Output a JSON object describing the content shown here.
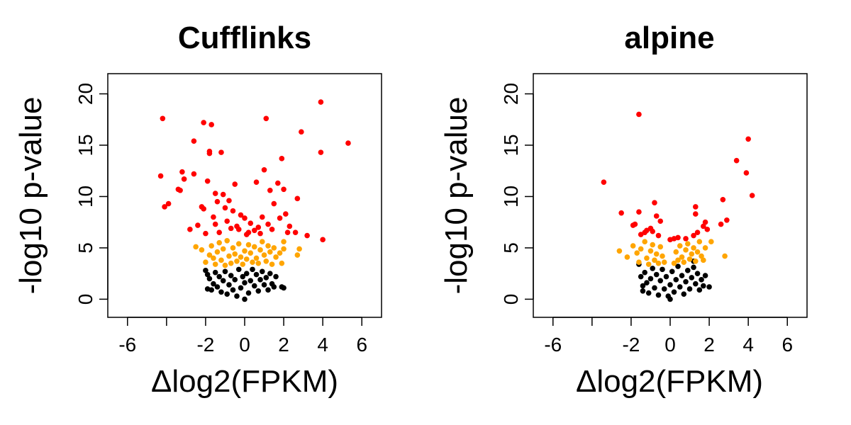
{
  "colors": {
    "not_significant": "#000000",
    "moderate": "#FFA500",
    "significant": "#FF0000"
  },
  "chart_data": [
    {
      "type": "scatter",
      "title": "Cufflinks",
      "xlabel": "Δlog2(FPKM)",
      "ylabel": "-log10 p-value",
      "xlim": [
        -6.5,
        6.5
      ],
      "ylim": [
        -0.8,
        21
      ],
      "xticks": [
        -6,
        -4,
        -2,
        0,
        2,
        4,
        6
      ],
      "xtick_labels": [
        "-6",
        "",
        "-2",
        "0",
        "2",
        "4",
        "6"
      ],
      "yticks": [
        0,
        5,
        10,
        15,
        20
      ],
      "ytick_labels": [
        "0",
        "5",
        "10",
        "15",
        "20"
      ],
      "grid": false,
      "series": [
        {
          "color": "#FF0000",
          "points": [
            [
              -4.3,
              12.0
            ],
            [
              -4.2,
              17.6
            ],
            [
              -4.1,
              9.0
            ],
            [
              -3.9,
              9.3
            ],
            [
              -3.4,
              10.7
            ],
            [
              -3.3,
              10.6
            ],
            [
              -3.2,
              12.4
            ],
            [
              -3.1,
              11.7
            ],
            [
              -2.8,
              6.8
            ],
            [
              -2.6,
              12.2
            ],
            [
              -2.6,
              15.4
            ],
            [
              -2.4,
              7.2
            ],
            [
              -2.2,
              9.0
            ],
            [
              -2.1,
              8.8
            ],
            [
              -2.1,
              17.2
            ],
            [
              -2.0,
              6.4
            ],
            [
              -1.9,
              11.5
            ],
            [
              -1.8,
              14.2
            ],
            [
              -1.8,
              14.4
            ],
            [
              -1.7,
              17.0
            ],
            [
              -1.6,
              8.0
            ],
            [
              -1.5,
              10.3
            ],
            [
              -1.5,
              7.3
            ],
            [
              -1.4,
              9.5
            ],
            [
              -1.3,
              6.5
            ],
            [
              -1.2,
              14.3
            ],
            [
              -1.1,
              10.2
            ],
            [
              -1.0,
              8.9
            ],
            [
              -0.9,
              7.6
            ],
            [
              -0.8,
              9.6
            ],
            [
              -0.7,
              6.9
            ],
            [
              -0.6,
              8.6
            ],
            [
              -0.5,
              11.2
            ],
            [
              -0.4,
              7.1
            ],
            [
              -0.3,
              6.8
            ],
            [
              -0.2,
              8.2
            ],
            [
              0.0,
              7.9
            ],
            [
              0.1,
              6.3
            ],
            [
              0.2,
              6.5
            ],
            [
              0.3,
              7.4
            ],
            [
              0.5,
              6.7
            ],
            [
              0.6,
              11.4
            ],
            [
              0.7,
              7.0
            ],
            [
              0.8,
              6.4
            ],
            [
              0.9,
              8.0
            ],
            [
              1.0,
              12.6
            ],
            [
              1.1,
              17.6
            ],
            [
              1.2,
              7.3
            ],
            [
              1.3,
              10.6
            ],
            [
              1.4,
              6.8
            ],
            [
              1.5,
              9.3
            ],
            [
              1.7,
              11.3
            ],
            [
              1.8,
              7.9
            ],
            [
              1.9,
              13.7
            ],
            [
              2.0,
              10.7
            ],
            [
              2.1,
              8.3
            ],
            [
              2.2,
              6.5
            ],
            [
              2.3,
              7.1
            ],
            [
              2.6,
              6.5
            ],
            [
              2.7,
              9.8
            ],
            [
              2.9,
              16.3
            ],
            [
              3.2,
              6.2
            ],
            [
              3.9,
              19.2
            ],
            [
              3.9,
              14.3
            ],
            [
              4.0,
              5.8
            ],
            [
              5.3,
              15.2
            ]
          ]
        },
        {
          "color": "#FFA500",
          "points": [
            [
              -2.5,
              5.1
            ],
            [
              -2.2,
              4.8
            ],
            [
              -2.0,
              3.6
            ],
            [
              -1.8,
              4.3
            ],
            [
              -1.7,
              5.2
            ],
            [
              -1.6,
              4.0
            ],
            [
              -1.5,
              3.4
            ],
            [
              -1.4,
              4.6
            ],
            [
              -1.3,
              5.5
            ],
            [
              -1.2,
              3.8
            ],
            [
              -1.1,
              4.9
            ],
            [
              -1.0,
              3.3
            ],
            [
              -0.9,
              5.7
            ],
            [
              -0.8,
              4.2
            ],
            [
              -0.7,
              3.5
            ],
            [
              -0.6,
              5.0
            ],
            [
              -0.5,
              4.4
            ],
            [
              -0.4,
              3.7
            ],
            [
              -0.3,
              5.4
            ],
            [
              -0.2,
              4.1
            ],
            [
              -0.1,
              3.4
            ],
            [
              0.0,
              4.7
            ],
            [
              0.1,
              3.9
            ],
            [
              0.2,
              5.3
            ],
            [
              0.3,
              4.5
            ],
            [
              0.4,
              3.6
            ],
            [
              0.5,
              5.1
            ],
            [
              0.6,
              4.0
            ],
            [
              0.7,
              3.5
            ],
            [
              0.8,
              4.8
            ],
            [
              0.9,
              5.6
            ],
            [
              1.0,
              4.3
            ],
            [
              1.1,
              3.7
            ],
            [
              1.2,
              5.2
            ],
            [
              1.3,
              4.6
            ],
            [
              1.4,
              3.4
            ],
            [
              1.5,
              5.0
            ],
            [
              1.6,
              4.1
            ],
            [
              1.8,
              4.5
            ],
            [
              1.9,
              3.5
            ],
            [
              2.0,
              5.6
            ],
            [
              2.0,
              4.9
            ],
            [
              2.7,
              4.3
            ],
            [
              2.8,
              4.9
            ]
          ]
        },
        {
          "color": "#000000",
          "points": [
            [
              -2.0,
              2.8
            ],
            [
              -1.9,
              2.4
            ],
            [
              -1.9,
              1.0
            ],
            [
              -1.8,
              2.0
            ],
            [
              -1.7,
              0.9
            ],
            [
              -1.6,
              1.5
            ],
            [
              -1.5,
              2.6
            ],
            [
              -1.4,
              1.2
            ],
            [
              -1.3,
              2.2
            ],
            [
              -1.2,
              0.7
            ],
            [
              -1.1,
              1.8
            ],
            [
              -1.0,
              2.7
            ],
            [
              -0.9,
              0.5
            ],
            [
              -0.8,
              1.4
            ],
            [
              -0.7,
              2.3
            ],
            [
              -0.6,
              0.9
            ],
            [
              -0.5,
              1.9
            ],
            [
              -0.4,
              0.3
            ],
            [
              -0.3,
              2.9
            ],
            [
              -0.2,
              1.1
            ],
            [
              -0.1,
              2.2
            ],
            [
              0.0,
              0.0
            ],
            [
              0.0,
              1.6
            ],
            [
              0.1,
              2.5
            ],
            [
              0.2,
              0.6
            ],
            [
              0.3,
              1.8
            ],
            [
              0.4,
              2.9
            ],
            [
              0.5,
              1.3
            ],
            [
              0.6,
              2.4
            ],
            [
              0.7,
              0.8
            ],
            [
              0.8,
              1.9
            ],
            [
              0.9,
              2.7
            ],
            [
              1.0,
              1.4
            ],
            [
              1.1,
              2.1
            ],
            [
              1.2,
              0.9
            ],
            [
              1.3,
              2.5
            ],
            [
              1.4,
              1.5
            ],
            [
              1.5,
              1.2
            ],
            [
              1.6,
              2.2
            ],
            [
              1.9,
              1.2
            ],
            [
              2.0,
              1.1
            ]
          ]
        }
      ]
    },
    {
      "type": "scatter",
      "title": "alpine",
      "xlabel": "Δlog2(FPKM)",
      "ylabel": "-log10 p-value",
      "xlim": [
        -6.5,
        6.5
      ],
      "ylim": [
        -0.8,
        21
      ],
      "xticks": [
        -6,
        -4,
        -2,
        0,
        2,
        4,
        6
      ],
      "xtick_labels": [
        "-6",
        "",
        "-2",
        "0",
        "2",
        "4",
        "6"
      ],
      "yticks": [
        0,
        5,
        10,
        15,
        20
      ],
      "ytick_labels": [
        "0",
        "5",
        "10",
        "15",
        "20"
      ],
      "grid": false,
      "series": [
        {
          "color": "#FF0000",
          "points": [
            [
              -3.4,
              11.4
            ],
            [
              -2.5,
              8.4
            ],
            [
              -1.9,
              7.2
            ],
            [
              -1.8,
              7.3
            ],
            [
              -1.6,
              8.5
            ],
            [
              -1.6,
              18.0
            ],
            [
              -1.5,
              6.3
            ],
            [
              -1.3,
              6.5
            ],
            [
              -1.2,
              6.7
            ],
            [
              -1.0,
              6.9
            ],
            [
              -0.9,
              6.6
            ],
            [
              -0.8,
              9.4
            ],
            [
              -0.7,
              8.1
            ],
            [
              -0.6,
              6.2
            ],
            [
              -0.5,
              7.6
            ],
            [
              0.0,
              5.8
            ],
            [
              0.2,
              5.9
            ],
            [
              0.4,
              6.0
            ],
            [
              0.8,
              5.9
            ],
            [
              1.2,
              6.2
            ],
            [
              1.3,
              9.0
            ],
            [
              1.3,
              8.3
            ],
            [
              1.4,
              6.5
            ],
            [
              1.7,
              7.1
            ],
            [
              1.8,
              7.5
            ],
            [
              1.9,
              6.8
            ],
            [
              2.6,
              7.3
            ],
            [
              2.7,
              9.7
            ],
            [
              2.9,
              7.7
            ],
            [
              3.4,
              13.5
            ],
            [
              3.9,
              12.3
            ],
            [
              4.0,
              15.6
            ],
            [
              4.2,
              10.1
            ]
          ]
        },
        {
          "color": "#FFA500",
          "points": [
            [
              -2.6,
              4.7
            ],
            [
              -2.2,
              4.1
            ],
            [
              -1.9,
              5.2
            ],
            [
              -1.7,
              4.5
            ],
            [
              -1.6,
              3.6
            ],
            [
              -1.5,
              4.9
            ],
            [
              -1.3,
              5.6
            ],
            [
              -1.2,
              4.0
            ],
            [
              -1.1,
              3.4
            ],
            [
              -1.0,
              4.7
            ],
            [
              -0.9,
              5.3
            ],
            [
              -0.8,
              3.8
            ],
            [
              -0.7,
              4.4
            ],
            [
              -0.6,
              3.5
            ],
            [
              -0.5,
              5.1
            ],
            [
              -0.4,
              4.2
            ],
            [
              -0.3,
              3.6
            ],
            [
              0.2,
              3.5
            ],
            [
              0.3,
              4.6
            ],
            [
              0.4,
              3.8
            ],
            [
              0.5,
              5.2
            ],
            [
              0.6,
              4.1
            ],
            [
              0.7,
              3.6
            ],
            [
              0.8,
              4.8
            ],
            [
              0.9,
              5.4
            ],
            [
              1.0,
              3.9
            ],
            [
              1.1,
              4.4
            ],
            [
              1.2,
              5.0
            ],
            [
              1.3,
              3.7
            ],
            [
              1.4,
              4.6
            ],
            [
              1.5,
              5.6
            ],
            [
              1.6,
              4.2
            ],
            [
              1.7,
              3.8
            ],
            [
              1.8,
              5.0
            ],
            [
              2.1,
              5.6
            ],
            [
              2.8,
              4.2
            ]
          ]
        },
        {
          "color": "#000000",
          "points": [
            [
              -1.5,
              2.2
            ],
            [
              -1.4,
              1.3
            ],
            [
              -1.4,
              0.8
            ],
            [
              -1.3,
              2.6
            ],
            [
              -1.2,
              1.6
            ],
            [
              -1.1,
              0.6
            ],
            [
              -1.0,
              2.0
            ],
            [
              -0.9,
              3.0
            ],
            [
              -0.8,
              1.1
            ],
            [
              -0.7,
              2.4
            ],
            [
              -0.6,
              0.4
            ],
            [
              -0.5,
              1.8
            ],
            [
              -0.4,
              2.9
            ],
            [
              -0.3,
              1.0
            ],
            [
              -0.2,
              2.2
            ],
            [
              -0.1,
              0.3
            ],
            [
              0.0,
              0.0
            ],
            [
              0.0,
              1.4
            ],
            [
              0.1,
              2.7
            ],
            [
              0.2,
              0.7
            ],
            [
              0.3,
              1.9
            ],
            [
              0.4,
              3.2
            ],
            [
              0.5,
              1.2
            ],
            [
              0.6,
              2.3
            ],
            [
              0.7,
              0.5
            ],
            [
              0.8,
              1.7
            ],
            [
              0.9,
              2.8
            ],
            [
              1.0,
              1.0
            ],
            [
              1.1,
              2.1
            ],
            [
              1.2,
              3.1
            ],
            [
              1.3,
              1.5
            ],
            [
              1.4,
              2.5
            ],
            [
              1.5,
              0.9
            ],
            [
              1.6,
              1.9
            ],
            [
              1.7,
              1.3
            ],
            [
              1.8,
              2.3
            ],
            [
              2.0,
              1.2
            ],
            [
              -1.6,
              3.4
            ],
            [
              1.2,
              3.7
            ]
          ]
        }
      ]
    }
  ]
}
